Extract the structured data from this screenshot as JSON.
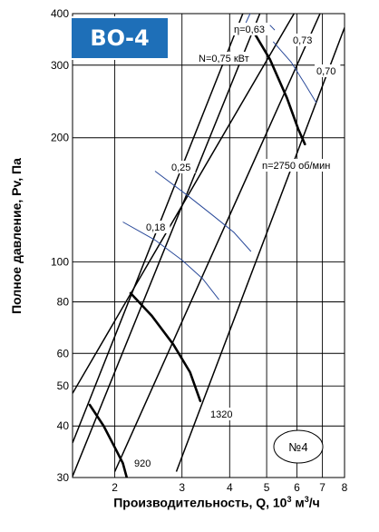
{
  "badge": "ВО-4",
  "chart_data": {
    "type": "line",
    "title": "",
    "xlabel_prefix": "Производительность, Q, 10",
    "xlabel_sup": "3",
    "xlabel_mid": " м",
    "xlabel_sup2": "3",
    "xlabel_suffix": "/ч",
    "ylabel": "Полное давление, Pv, Па",
    "x_scale": "log",
    "y_scale": "log",
    "xlim": [
      1.55,
      8
    ],
    "ylim": [
      30,
      400
    ],
    "x_ticks": [
      2,
      3,
      4,
      5,
      6,
      7,
      8
    ],
    "y_ticks": [
      30,
      40,
      50,
      60,
      80,
      100,
      200,
      300,
      400
    ],
    "grid": true,
    "power_lines": [
      {
        "label": "N=0,75 кВт",
        "points": [
          [
            1.55,
            48
          ],
          [
            5.9,
            400
          ]
        ]
      },
      {
        "label": "",
        "points": [
          [
            2.0,
            31
          ],
          [
            6.9,
            400
          ]
        ]
      },
      {
        "label": "",
        "points": [
          [
            2.9,
            31
          ],
          [
            8.0,
            370
          ]
        ]
      },
      {
        "label": "",
        "points": [
          [
            1.55,
            30.2
          ],
          [
            4.8,
            400
          ]
        ]
      },
      {
        "label": "",
        "points": [
          [
            1.55,
            36.4
          ],
          [
            4.33,
            400
          ]
        ]
      }
    ],
    "speed_curves": [
      {
        "label": "n=2750 об/мин",
        "points": [
          [
            4.53,
            373
          ],
          [
            5.1,
            310
          ],
          [
            5.65,
            250
          ],
          [
            6.05,
            210
          ],
          [
            6.3,
            193
          ]
        ]
      },
      {
        "label": "1320",
        "points": [
          [
            2.2,
            84
          ],
          [
            2.5,
            74
          ],
          [
            2.85,
            63
          ],
          [
            3.15,
            54
          ],
          [
            3.35,
            46
          ]
        ]
      },
      {
        "label": "920",
        "points": [
          [
            1.72,
            45
          ],
          [
            1.87,
            40
          ],
          [
            2.0,
            35.5
          ],
          [
            2.1,
            32.5
          ],
          [
            2.15,
            30
          ]
        ]
      }
    ],
    "efficiency_curves": [
      {
        "label": "η=0,63",
        "points": [
          [
            4.4,
            378
          ],
          [
            4.48,
            392
          ],
          [
            4.55,
            404
          ]
        ]
      },
      {
        "label": "0,73",
        "points": [
          [
            5.1,
            375
          ],
          [
            5.25,
            365
          ]
        ]
      },
      {
        "label": "0,70",
        "points": [
          [
            5.2,
            342
          ],
          [
            5.8,
            305
          ],
          [
            6.3,
            270
          ],
          [
            6.75,
            243
          ]
        ]
      },
      {
        "label": "0,25",
        "points": [
          [
            2.55,
            166
          ],
          [
            3.1,
            145
          ],
          [
            3.6,
            130
          ],
          [
            4.1,
            118
          ],
          [
            4.55,
            106
          ]
        ]
      },
      {
        "label": "0,18",
        "points": [
          [
            2.1,
            125
          ],
          [
            2.55,
            113
          ],
          [
            3.0,
            101
          ],
          [
            3.4,
            91
          ],
          [
            3.75,
            81
          ]
        ]
      }
    ],
    "efficiency_color": "#2a4a9a",
    "model_label": "№4"
  }
}
